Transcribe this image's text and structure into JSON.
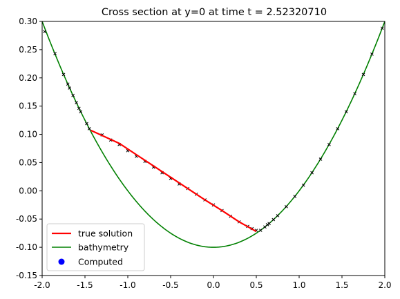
{
  "chart_data": {
    "type": "line",
    "title": "Cross section at y=0 at time t =     2.52320710",
    "xlabel": "",
    "ylabel": "",
    "xlim": [
      -2.0,
      2.0
    ],
    "ylim": [
      -0.15,
      0.3
    ],
    "x_ticks": [
      "-2.0",
      "-1.5",
      "-1.0",
      "-0.5",
      "0.0",
      "0.5",
      "1.0",
      "1.5",
      "2.0"
    ],
    "y_ticks": [
      "-0.15",
      "-0.10",
      "-0.05",
      "0.00",
      "0.05",
      "0.10",
      "0.15",
      "0.20",
      "0.25",
      "0.30"
    ],
    "grid": false,
    "legend_position": "lower-left",
    "series": [
      {
        "name": "true solution",
        "style": "line",
        "color": "#ff0000",
        "x": [
          -1.43,
          -1.3,
          -1.1,
          -0.9,
          -0.7,
          -0.5,
          -0.3,
          -0.1,
          0.1,
          0.3,
          0.5
        ],
        "y": [
          0.107,
          0.098,
          0.084,
          0.064,
          0.044,
          0.024,
          0.004,
          -0.016,
          -0.035,
          -0.055,
          -0.072
        ]
      },
      {
        "name": "bathymetry",
        "style": "line",
        "color": "#008000",
        "function": "0.1*x^2 - 0.1",
        "x_range": [
          -2.0,
          2.0
        ]
      },
      {
        "name": "Computed",
        "style": "markers",
        "color": "#0000ff",
        "x": [
          -1.97,
          -1.85,
          -1.75,
          -1.7,
          -1.68,
          -1.64,
          -1.6,
          -1.57,
          -1.55,
          -1.48,
          -1.45,
          -1.3,
          -1.2,
          -1.1,
          -1.0,
          -0.9,
          -0.8,
          -0.7,
          -0.6,
          -0.5,
          -0.4,
          -0.3,
          -0.2,
          -0.1,
          0.0,
          0.1,
          0.2,
          0.3,
          0.4,
          0.45,
          0.5,
          0.55,
          0.6,
          0.63,
          0.65,
          0.7,
          0.75,
          0.85,
          0.95,
          1.05,
          1.15,
          1.25,
          1.35,
          1.45,
          1.55,
          1.65,
          1.75,
          1.85,
          1.97
        ],
        "y": [
          0.282,
          0.243,
          0.206,
          0.189,
          0.182,
          0.169,
          0.156,
          0.146,
          0.14,
          0.119,
          0.11,
          0.099,
          0.09,
          0.082,
          0.071,
          0.061,
          0.052,
          0.042,
          0.032,
          0.022,
          0.012,
          0.004,
          -0.006,
          -0.016,
          -0.025,
          -0.035,
          -0.045,
          -0.055,
          -0.063,
          -0.067,
          -0.07,
          -0.07,
          -0.064,
          -0.06,
          -0.058,
          -0.051,
          -0.044,
          -0.028,
          -0.01,
          0.01,
          0.032,
          0.056,
          0.082,
          0.11,
          0.14,
          0.172,
          0.206,
          0.242,
          0.288
        ]
      }
    ]
  }
}
